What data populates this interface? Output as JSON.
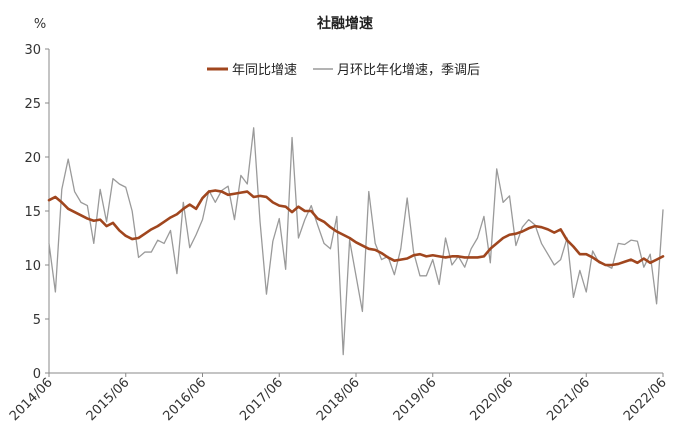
{
  "chart_data": {
    "type": "line",
    "title": "社融增速",
    "ylabel": "%",
    "ylim": [
      0,
      30
    ],
    "yticks": [
      "0",
      "5",
      "10",
      "15",
      "20",
      "25",
      "30"
    ],
    "xlim": [
      "2014/06",
      "2022/06"
    ],
    "xticks": [
      "2014/06",
      "2015/06",
      "2016/06",
      "2017/06",
      "2018/06",
      "2019/06",
      "2020/06",
      "2021/06",
      "2022/06"
    ],
    "legend_position": "top-center",
    "grid": false,
    "series": [
      {
        "name": "年同比增速",
        "color": "#a0461e",
        "points": [
          [
            "2014/06",
            16.0
          ],
          [
            "2014/07",
            16.3
          ],
          [
            "2014/08",
            15.8
          ],
          [
            "2014/09",
            15.2
          ],
          [
            "2014/10",
            14.9
          ],
          [
            "2014/11",
            14.6
          ],
          [
            "2014/12",
            14.3
          ],
          [
            "2015/01",
            14.1
          ],
          [
            "2015/02",
            14.2
          ],
          [
            "2015/03",
            13.6
          ],
          [
            "2015/04",
            13.9
          ],
          [
            "2015/05",
            13.2
          ],
          [
            "2015/06",
            12.7
          ],
          [
            "2015/07",
            12.4
          ],
          [
            "2015/08",
            12.5
          ],
          [
            "2015/09",
            12.9
          ],
          [
            "2015/10",
            13.3
          ],
          [
            "2015/11",
            13.6
          ],
          [
            "2015/12",
            14.0
          ],
          [
            "2016/01",
            14.4
          ],
          [
            "2016/02",
            14.7
          ],
          [
            "2016/03",
            15.2
          ],
          [
            "2016/04",
            15.6
          ],
          [
            "2016/05",
            15.2
          ],
          [
            "2016/06",
            16.2
          ],
          [
            "2016/07",
            16.8
          ],
          [
            "2016/08",
            16.9
          ],
          [
            "2016/09",
            16.8
          ],
          [
            "2016/10",
            16.5
          ],
          [
            "2016/11",
            16.6
          ],
          [
            "2016/12",
            16.7
          ],
          [
            "2017/01",
            16.8
          ],
          [
            "2017/02",
            16.3
          ],
          [
            "2017/03",
            16.4
          ],
          [
            "2017/04",
            16.3
          ],
          [
            "2017/05",
            15.8
          ],
          [
            "2017/06",
            15.5
          ],
          [
            "2017/07",
            15.4
          ],
          [
            "2017/08",
            14.9
          ],
          [
            "2017/09",
            15.4
          ],
          [
            "2017/10",
            15.0
          ],
          [
            "2017/11",
            15.0
          ],
          [
            "2017/12",
            14.3
          ],
          [
            "2018/01",
            14.0
          ],
          [
            "2018/02",
            13.5
          ],
          [
            "2018/03",
            13.1
          ],
          [
            "2018/04",
            12.8
          ],
          [
            "2018/05",
            12.5
          ],
          [
            "2018/06",
            12.1
          ],
          [
            "2018/07",
            11.8
          ],
          [
            "2018/08",
            11.5
          ],
          [
            "2018/09",
            11.4
          ],
          [
            "2018/10",
            11.1
          ],
          [
            "2018/11",
            10.7
          ],
          [
            "2018/12",
            10.4
          ],
          [
            "2019/01",
            10.5
          ],
          [
            "2019/02",
            10.6
          ],
          [
            "2019/03",
            10.9
          ],
          [
            "2019/04",
            11.0
          ],
          [
            "2019/05",
            10.8
          ],
          [
            "2019/06",
            10.9
          ],
          [
            "2019/07",
            10.8
          ],
          [
            "2019/08",
            10.7
          ],
          [
            "2019/09",
            10.8
          ],
          [
            "2019/10",
            10.8
          ],
          [
            "2019/11",
            10.7
          ],
          [
            "2019/12",
            10.7
          ],
          [
            "2020/01",
            10.7
          ],
          [
            "2020/02",
            10.8
          ],
          [
            "2020/03",
            11.5
          ],
          [
            "2020/04",
            12.0
          ],
          [
            "2020/05",
            12.5
          ],
          [
            "2020/06",
            12.8
          ],
          [
            "2020/07",
            12.9
          ],
          [
            "2020/08",
            13.1
          ],
          [
            "2020/09",
            13.4
          ],
          [
            "2020/10",
            13.6
          ],
          [
            "2020/11",
            13.5
          ],
          [
            "2020/12",
            13.3
          ],
          [
            "2021/01",
            13.0
          ],
          [
            "2021/02",
            13.3
          ],
          [
            "2021/03",
            12.3
          ],
          [
            "2021/04",
            11.7
          ],
          [
            "2021/05",
            11.0
          ],
          [
            "2021/06",
            11.0
          ],
          [
            "2021/07",
            10.7
          ],
          [
            "2021/08",
            10.3
          ],
          [
            "2021/09",
            10.0
          ],
          [
            "2021/10",
            10.0
          ],
          [
            "2021/11",
            10.1
          ],
          [
            "2021/12",
            10.3
          ],
          [
            "2022/01",
            10.5
          ],
          [
            "2022/02",
            10.2
          ],
          [
            "2022/03",
            10.6
          ],
          [
            "2022/04",
            10.2
          ],
          [
            "2022/05",
            10.5
          ],
          [
            "2022/06",
            10.8
          ]
        ]
      },
      {
        "name": "月环比年化增速，季调后",
        "color": "#9a9a9a",
        "points": [
          [
            "2014/06",
            12.0
          ],
          [
            "2014/07",
            7.5
          ],
          [
            "2014/08",
            17.0
          ],
          [
            "2014/09",
            19.8
          ],
          [
            "2014/10",
            16.8
          ],
          [
            "2014/11",
            15.8
          ],
          [
            "2014/12",
            15.5
          ],
          [
            "2015/01",
            12.0
          ],
          [
            "2015/02",
            17.0
          ],
          [
            "2015/03",
            14.0
          ],
          [
            "2015/04",
            18.0
          ],
          [
            "2015/05",
            17.5
          ],
          [
            "2015/06",
            17.2
          ],
          [
            "2015/07",
            15.0
          ],
          [
            "2015/08",
            10.7
          ],
          [
            "2015/09",
            11.2
          ],
          [
            "2015/10",
            11.2
          ],
          [
            "2015/11",
            12.3
          ],
          [
            "2015/12",
            12.0
          ],
          [
            "2016/01",
            13.2
          ],
          [
            "2016/02",
            9.2
          ],
          [
            "2016/03",
            15.8
          ],
          [
            "2016/04",
            11.6
          ],
          [
            "2016/05",
            12.8
          ],
          [
            "2016/06",
            14.2
          ],
          [
            "2016/07",
            16.9
          ],
          [
            "2016/08",
            15.8
          ],
          [
            "2016/09",
            16.9
          ],
          [
            "2016/10",
            17.3
          ],
          [
            "2016/11",
            14.2
          ],
          [
            "2016/12",
            18.3
          ],
          [
            "2017/01",
            17.5
          ],
          [
            "2017/02",
            22.7
          ],
          [
            "2017/03",
            14.0
          ],
          [
            "2017/04",
            7.3
          ],
          [
            "2017/05",
            12.2
          ],
          [
            "2017/06",
            14.3
          ],
          [
            "2017/07",
            9.6
          ],
          [
            "2017/08",
            21.8
          ],
          [
            "2017/09",
            12.5
          ],
          [
            "2017/10",
            14.2
          ],
          [
            "2017/11",
            15.5
          ],
          [
            "2017/12",
            13.7
          ],
          [
            "2018/01",
            12.0
          ],
          [
            "2018/02",
            11.5
          ],
          [
            "2018/03",
            14.5
          ],
          [
            "2018/04",
            1.7
          ],
          [
            "2018/05",
            12.3
          ],
          [
            "2018/06",
            9.0
          ],
          [
            "2018/07",
            5.7
          ],
          [
            "2018/08",
            16.8
          ],
          [
            "2018/09",
            12.0
          ],
          [
            "2018/10",
            10.5
          ],
          [
            "2018/11",
            10.8
          ],
          [
            "2018/12",
            9.1
          ],
          [
            "2019/01",
            11.5
          ],
          [
            "2019/02",
            16.2
          ],
          [
            "2019/03",
            11.2
          ],
          [
            "2019/04",
            9.0
          ],
          [
            "2019/05",
            9.0
          ],
          [
            "2019/06",
            10.5
          ],
          [
            "2019/07",
            8.2
          ],
          [
            "2019/08",
            12.5
          ],
          [
            "2019/09",
            10.0
          ],
          [
            "2019/10",
            10.8
          ],
          [
            "2019/11",
            9.8
          ],
          [
            "2019/12",
            11.5
          ],
          [
            "2020/01",
            12.5
          ],
          [
            "2020/02",
            14.5
          ],
          [
            "2020/03",
            10.2
          ],
          [
            "2020/04",
            18.9
          ],
          [
            "2020/05",
            15.8
          ],
          [
            "2020/06",
            16.4
          ],
          [
            "2020/07",
            11.8
          ],
          [
            "2020/08",
            13.5
          ],
          [
            "2020/09",
            14.2
          ],
          [
            "2020/10",
            13.7
          ],
          [
            "2020/11",
            12.0
          ],
          [
            "2020/12",
            11.0
          ],
          [
            "2021/01",
            10.0
          ],
          [
            "2021/02",
            10.5
          ],
          [
            "2021/03",
            12.5
          ],
          [
            "2021/04",
            7.0
          ],
          [
            "2021/05",
            9.5
          ],
          [
            "2021/06",
            7.5
          ],
          [
            "2021/07",
            11.3
          ],
          [
            "2021/08",
            10.2
          ],
          [
            "2021/09",
            10.0
          ],
          [
            "2021/10",
            9.7
          ],
          [
            "2021/11",
            12.0
          ],
          [
            "2021/12",
            11.9
          ],
          [
            "2022/01",
            12.3
          ],
          [
            "2022/02",
            12.2
          ],
          [
            "2022/03",
            9.8
          ],
          [
            "2022/04",
            11.0
          ],
          [
            "2022/05",
            6.4
          ],
          [
            "2022/06",
            15.1
          ]
        ]
      }
    ]
  }
}
